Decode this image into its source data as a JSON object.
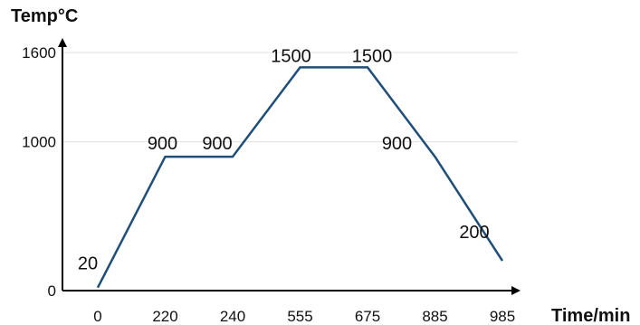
{
  "chart_data": {
    "type": "line",
    "title": "",
    "xlabel": "Time/min",
    "ylabel": "Temp°C",
    "x_ticks": [
      "0",
      "220",
      "240",
      "555",
      "675",
      "885",
      "985"
    ],
    "y_ticks": [
      {
        "value": 0,
        "label": "0"
      },
      {
        "value": 1000,
        "label": "1000"
      },
      {
        "value": 1600,
        "label": "1600"
      }
    ],
    "ylim": [
      0,
      1600
    ],
    "grid": true,
    "series": [
      {
        "points": [
          {
            "x": 0,
            "y": 20,
            "label": "20"
          },
          {
            "x": 220,
            "y": 900,
            "label": "900"
          },
          {
            "x": 240,
            "y": 900,
            "label": "900"
          },
          {
            "x": 555,
            "y": 1500,
            "label": "1500"
          },
          {
            "x": 675,
            "y": 1500,
            "label": "1500"
          },
          {
            "x": 885,
            "y": 900,
            "label": "900"
          },
          {
            "x": 985,
            "y": 200,
            "label": "200"
          }
        ]
      }
    ]
  },
  "colors": {
    "line": "#1f4e79",
    "axis": "#000000",
    "grid": "#e0e0e0",
    "text": "#111111"
  }
}
